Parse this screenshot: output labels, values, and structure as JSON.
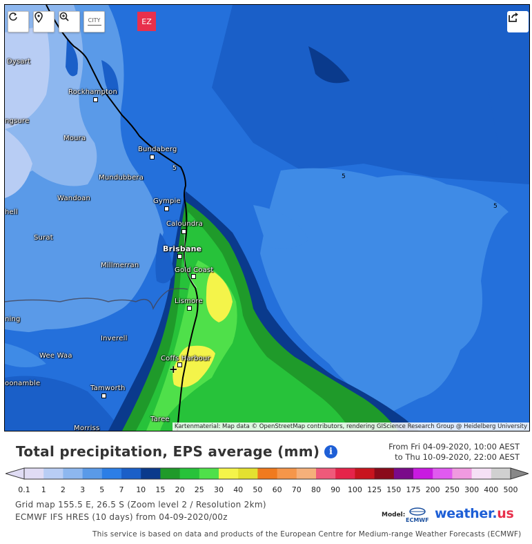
{
  "toolbar": {
    "refresh_icon": "refresh-icon",
    "location_icon": "location-pin-icon",
    "zoom_icon": "zoom-in-icon",
    "city_label": "CITY",
    "ez_label": "EZ",
    "share_icon": "share-icon"
  },
  "map": {
    "attribution": "Kartenmaterial: Map data © OpenStreetMap contributors, rendering GIScience Research Group @ Heidelberg University",
    "contour_labels": [
      "5",
      "5",
      "5"
    ],
    "marker_label": "+",
    "cities": [
      {
        "name": "Dysart",
        "big": false
      },
      {
        "name": "Rockhampton",
        "big": false
      },
      {
        "name": "ngsure",
        "big": false
      },
      {
        "name": "Moura",
        "big": false
      },
      {
        "name": "Bundaberg",
        "big": false
      },
      {
        "name": "Mundubbera",
        "big": false
      },
      {
        "name": "Wandoan",
        "big": false
      },
      {
        "name": "Gympie",
        "big": false
      },
      {
        "name": "hell",
        "big": false
      },
      {
        "name": "Caloundra",
        "big": false
      },
      {
        "name": "Surat",
        "big": false
      },
      {
        "name": "Brisbane",
        "big": true
      },
      {
        "name": "Millmerran",
        "big": false
      },
      {
        "name": "Gold Coast",
        "big": false
      },
      {
        "name": "Lismore",
        "big": false
      },
      {
        "name": "ning",
        "big": false
      },
      {
        "name": "Inverell",
        "big": false
      },
      {
        "name": "Wee Waa",
        "big": false
      },
      {
        "name": "Coffs Harbour",
        "big": false
      },
      {
        "name": "oonamble",
        "big": false
      },
      {
        "name": "Tamworth",
        "big": false
      },
      {
        "name": "Taree",
        "big": false
      },
      {
        "name": "Morriss",
        "big": false
      }
    ]
  },
  "header": {
    "title": "Total precipitation, EPS average (mm)",
    "info_icon": "info-icon",
    "from_text": "From Fri 04-09-2020, 10:00 AEST",
    "to_text": "to Thu 10-09-2020, 22:00 AEST"
  },
  "legend": {
    "colors": [
      "#e0dcf4",
      "#b8cdf4",
      "#8db7ef",
      "#5a9ae8",
      "#2c7ee6",
      "#1a5fc8",
      "#0a3a8c",
      "#1f9a2a",
      "#27c23a",
      "#4fe04a",
      "#f4f44a",
      "#e4e030",
      "#f07a1e",
      "#f5964a",
      "#f5b07a",
      "#ef5a7a",
      "#e5244a",
      "#c8141e",
      "#8a0a1a",
      "#7a0a8a",
      "#c81ae0",
      "#e05af0",
      "#f09ae0",
      "#f5e0f5",
      "#d0d0d0"
    ],
    "labels": [
      "0.1",
      "1",
      "2",
      "3",
      "5",
      "7",
      "10",
      "15",
      "20",
      "25",
      "30",
      "40",
      "50",
      "60",
      "70",
      "80",
      "90",
      "100",
      "125",
      "150",
      "175",
      "200",
      "250",
      "300",
      "400",
      "500"
    ]
  },
  "meta": {
    "grid": "Grid map 155.5 E, 26.5 S (Zoom level 2 / Resolution 2km)",
    "model_run": "ECMWF IFS HRES (10 days) from 04-09-2020/00z",
    "model_label": "Model:",
    "ecmwf_label": "ECMWF",
    "brand_main": "weather.",
    "brand_accent": "us",
    "footer": "This service is based on data and products of the European Centre for Medium-range Weather Forecasts (ECMWF)"
  }
}
